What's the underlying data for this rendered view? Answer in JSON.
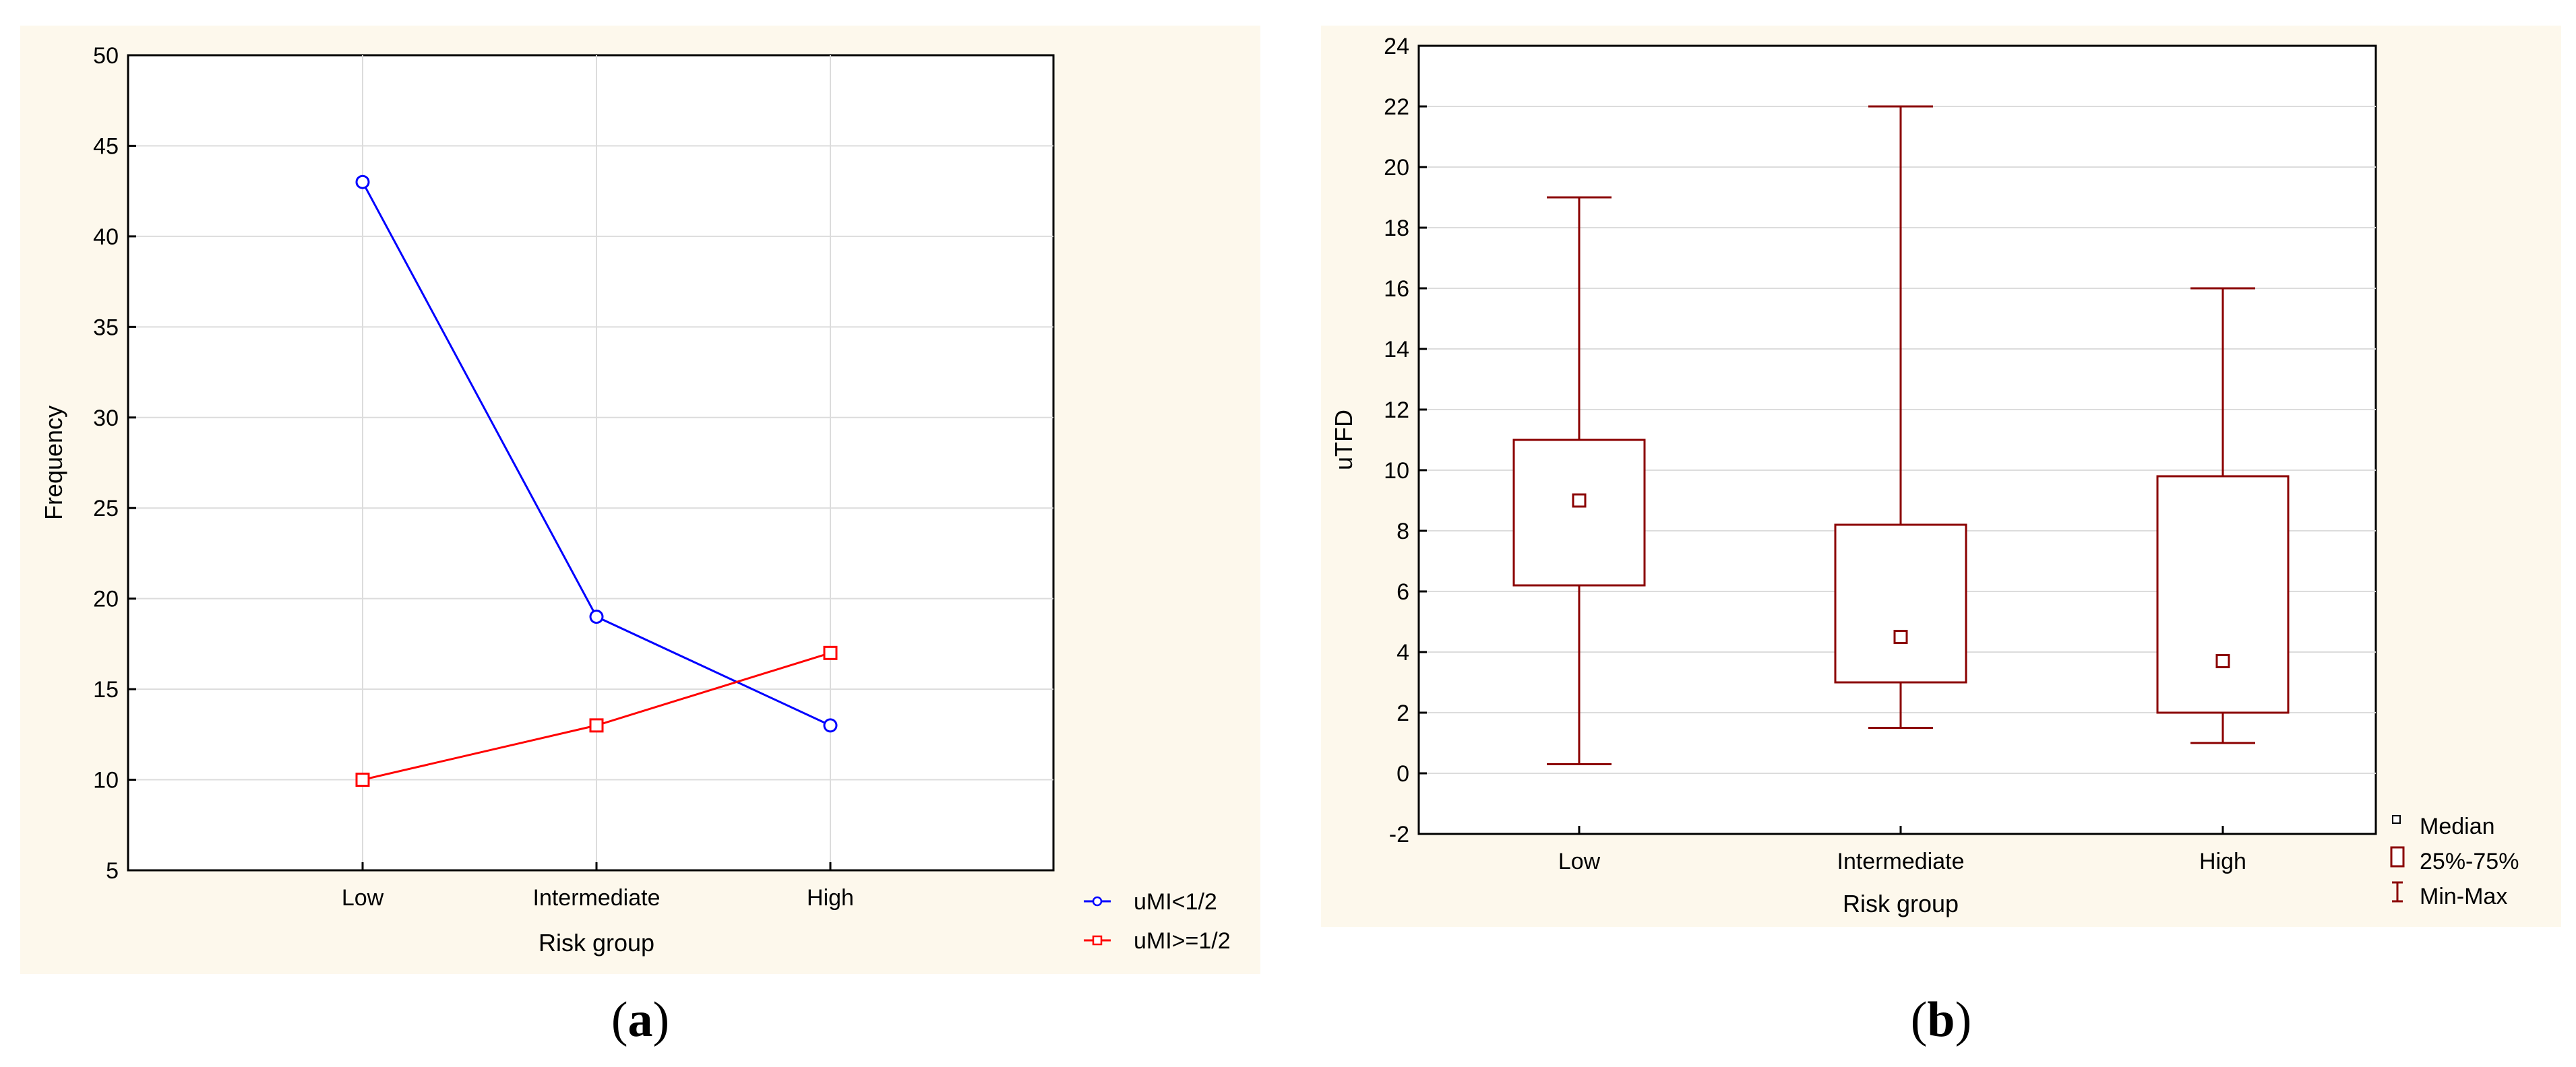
{
  "chart_data": [
    {
      "type": "line",
      "panel_label": "a",
      "xlabel": "Risk group",
      "ylabel": "Frequency",
      "categories": [
        "Low",
        "Intermediate",
        "High"
      ],
      "ylim": [
        5,
        50
      ],
      "yticks": [
        5,
        10,
        15,
        20,
        25,
        30,
        35,
        40,
        45,
        50
      ],
      "grid": true,
      "legend_position": "bottom-right outside",
      "series": [
        {
          "name": "uMI<1/2",
          "values": [
            43,
            19,
            13
          ],
          "color": "#0000ff",
          "marker": "circle"
        },
        {
          "name": "uMI>=1/2",
          "values": [
            10,
            13,
            17
          ],
          "color": "#ff0000",
          "marker": "square"
        }
      ]
    },
    {
      "type": "box",
      "panel_label": "b",
      "xlabel": "Risk group",
      "ylabel": "uTFD",
      "categories": [
        "Low",
        "Intermediate",
        "High"
      ],
      "ylim": [
        -2,
        24
      ],
      "yticks": [
        -2,
        0,
        2,
        4,
        6,
        8,
        10,
        12,
        14,
        16,
        18,
        20,
        22,
        24
      ],
      "grid": true,
      "color": "#8b0000",
      "legend_position": "bottom-right outside",
      "legend": [
        "Median",
        "25%-75%",
        "Min-Max"
      ],
      "boxes": [
        {
          "category": "Low",
          "min": 0.3,
          "q1": 6.2,
          "median": 9.0,
          "q3": 11.0,
          "max": 19.0
        },
        {
          "category": "Intermediate",
          "min": 1.5,
          "q1": 3.0,
          "median": 4.5,
          "q3": 8.2,
          "max": 22.0
        },
        {
          "category": "High",
          "min": 1.0,
          "q1": 2.0,
          "median": 3.7,
          "q3": 9.8,
          "max": 16.0
        }
      ]
    }
  ]
}
